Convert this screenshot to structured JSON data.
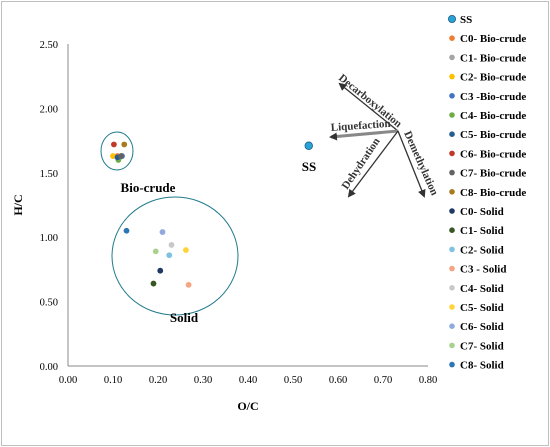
{
  "chart_data": {
    "type": "scatter",
    "title": "",
    "xlabel": "O/C",
    "ylabel": "H/C",
    "xlim": [
      0,
      0.8
    ],
    "ylim": [
      0,
      2.5
    ],
    "x_ticks": [
      "0.00",
      "0.10",
      "0.20",
      "0.30",
      "0.40",
      "0.50",
      "0.60",
      "0.70",
      "0.80"
    ],
    "y_ticks": [
      "0.00",
      "0.50",
      "1.00",
      "1.50",
      "2.00",
      "2.50"
    ],
    "grid": false,
    "legend_position": "right",
    "series": [
      {
        "name": "SS",
        "color": "#29a3d6",
        "x": [
          0.535
        ],
        "y": [
          1.71
        ]
      },
      {
        "name": "C0- Bio-crude",
        "color": "#ed7d31",
        "x": [
          0.11
        ],
        "y": [
          1.63
        ]
      },
      {
        "name": "C1- Bio-crude",
        "color": "#a5a5a5",
        "x": [
          0.115
        ],
        "y": [
          1.62
        ]
      },
      {
        "name": "C2- Bio-crude",
        "color": "#ffc000",
        "x": [
          0.1
        ],
        "y": [
          1.63
        ]
      },
      {
        "name": "C3 -Bio-crude",
        "color": "#4472c4",
        "x": [
          0.12
        ],
        "y": [
          1.63
        ]
      },
      {
        "name": "C4- Bio-crude",
        "color": "#70ad47",
        "x": [
          0.112
        ],
        "y": [
          1.6
        ]
      },
      {
        "name": "C5- Bio-crude",
        "color": "#255e91",
        "x": [
          0.11
        ],
        "y": [
          1.62
        ]
      },
      {
        "name": "C6- Bio-crude",
        "color": "#c0392b",
        "x": [
          0.102
        ],
        "y": [
          1.72
        ]
      },
      {
        "name": "C7- Bio-crude",
        "color": "#636363",
        "x": [
          0.118
        ],
        "y": [
          1.63
        ]
      },
      {
        "name": "C8- Bio-crude",
        "color": "#a67c1e",
        "x": [
          0.125
        ],
        "y": [
          1.72
        ]
      },
      {
        "name": "C0- Solid",
        "color": "#1f3864",
        "x": [
          0.205
        ],
        "y": [
          0.74
        ]
      },
      {
        "name": "C1- Solid",
        "color": "#375623",
        "x": [
          0.19
        ],
        "y": [
          0.64
        ]
      },
      {
        "name": "C2- Solid",
        "color": "#7fc1e0",
        "x": [
          0.225
        ],
        "y": [
          0.86
        ]
      },
      {
        "name": "C3 - Solid",
        "color": "#f4a582",
        "x": [
          0.268
        ],
        "y": [
          0.63
        ]
      },
      {
        "name": "C4- Solid",
        "color": "#c9c9c9",
        "x": [
          0.23
        ],
        "y": [
          0.94
        ]
      },
      {
        "name": "C5- Solid",
        "color": "#ffd43b",
        "x": [
          0.262
        ],
        "y": [
          0.9
        ]
      },
      {
        "name": "C6- Solid",
        "color": "#8faadc",
        "x": [
          0.21
        ],
        "y": [
          1.04
        ]
      },
      {
        "name": "C7- Solid",
        "color": "#a9d18e",
        "x": [
          0.195
        ],
        "y": [
          0.89
        ]
      },
      {
        "name": "C8- Solid",
        "color": "#2e75b6",
        "x": [
          0.13
        ],
        "y": [
          1.05
        ]
      }
    ],
    "annotations": {
      "bio_crude_label": "Bio-crude",
      "solid_label": "Solid",
      "ss_label": "SS",
      "arrows": [
        "Decarboxylation",
        "Liquefaction",
        "Demethylation",
        "Dehydration"
      ]
    }
  }
}
